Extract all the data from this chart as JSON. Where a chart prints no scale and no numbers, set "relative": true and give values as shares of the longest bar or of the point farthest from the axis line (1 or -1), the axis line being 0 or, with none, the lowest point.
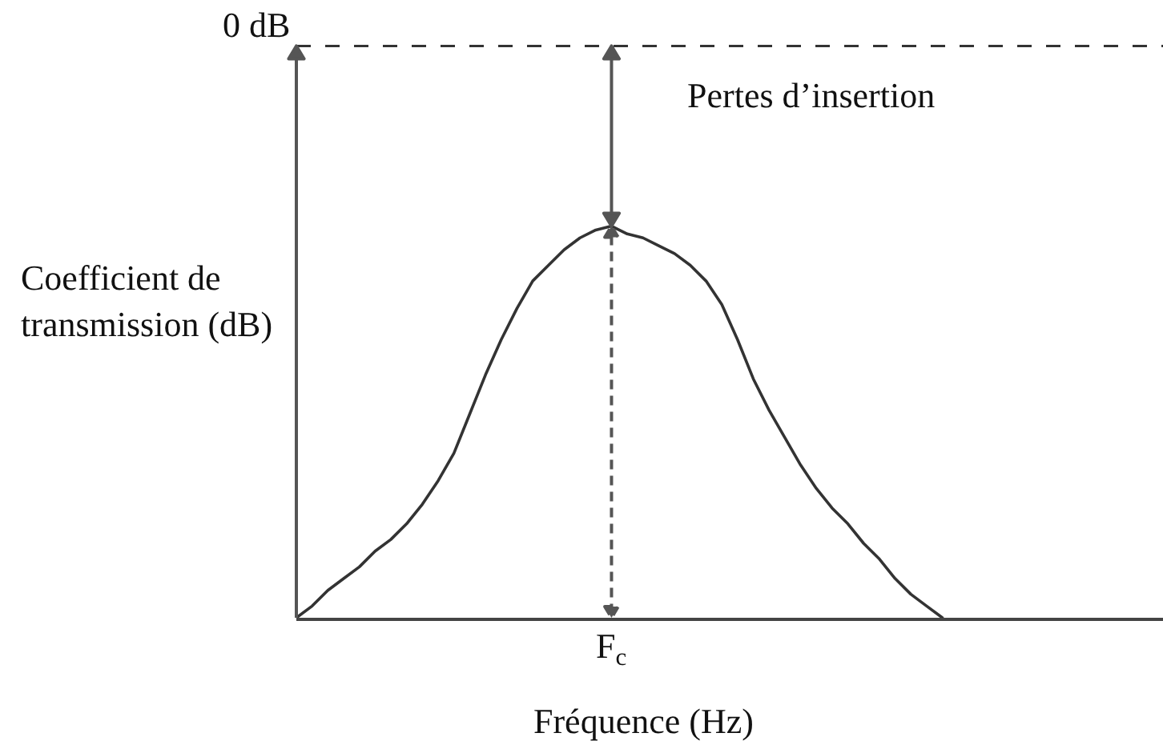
{
  "chart_data": {
    "type": "line",
    "relative": true,
    "color": "#333333",
    "ylabel": "Coefficient de transmission (dB)",
    "xlabel": "Fréquence (Hz)",
    "categories": [
      null,
      null,
      null,
      null,
      null,
      null,
      null,
      null,
      null,
      null,
      null,
      null,
      null,
      null,
      null,
      null,
      null,
      null,
      null,
      null,
      null,
      null,
      null,
      null,
      null,
      null,
      null,
      null,
      null,
      null,
      null,
      null,
      null,
      null,
      null,
      null,
      null,
      null,
      null,
      null,
      null,
      null,
      null,
      null,
      null,
      null,
      null,
      null,
      null,
      null,
      null,
      null,
      null,
      null,
      null,
      null
    ],
    "values": [
      0,
      0.03,
      0.07,
      0.1,
      0.13,
      0.17,
      0.2,
      0.24,
      0.29,
      0.35,
      0.42,
      0.52,
      0.62,
      0.71,
      0.79,
      0.86,
      0.9,
      0.94,
      0.97,
      0.99,
      1,
      0.98,
      0.97,
      0.95,
      0.93,
      0.9,
      0.86,
      0.8,
      0.71,
      0.61,
      0.53,
      0.46,
      0.39,
      0.33,
      0.28,
      0.24,
      0.19,
      0.15,
      0.1,
      0.06,
      0.03,
      0,
      null,
      null,
      null,
      null,
      null,
      null,
      null,
      null,
      null,
      null,
      null,
      null,
      null,
      null
    ],
    "ref_lines": [
      {
        "axis": "y",
        "value": 1.46,
        "label": "0 dB",
        "line_style": "dashed",
        "color": "#333333"
      }
    ],
    "annotations": [
      "Pertes d’insertion",
      "F$_{c}$"
    ]
  }
}
